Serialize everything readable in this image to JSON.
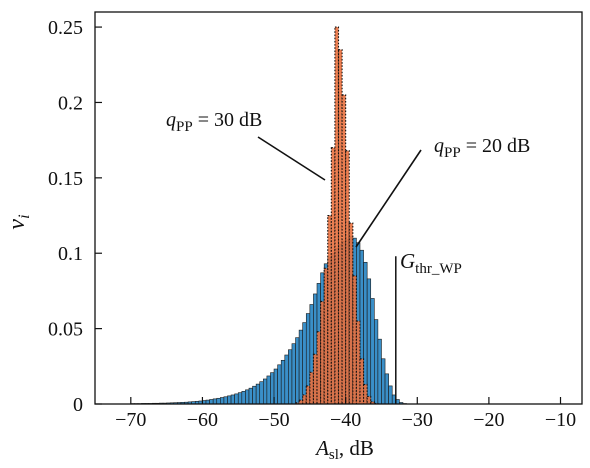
{
  "chart_data": {
    "type": "bar",
    "title": "",
    "xlabel_main": "A",
    "xlabel_sub": "sl",
    "xlabel_suffix": ", dB",
    "ylabel": "v",
    "ylabel_sub": "i",
    "xlim": [
      -75,
      -7
    ],
    "ylim": [
      0,
      0.26
    ],
    "xticks": [
      -70,
      -60,
      -50,
      -40,
      -30,
      -20,
      -10
    ],
    "xtick_labels": [
      "−70",
      "−60",
      "−50",
      "−40",
      "−30",
      "−20",
      "−10"
    ],
    "yticks": [
      0,
      0.05,
      0.1,
      0.15,
      0.2,
      0.25
    ],
    "ytick_labels": [
      "0",
      "0.05",
      "0.1",
      "0.15",
      "0.2",
      "0.25"
    ],
    "grid": false,
    "bin_width": 0.5,
    "series": [
      {
        "label_q": "q",
        "label_sub": "PP",
        "label_rest": " = 20 dB",
        "color": "#3a8fc8",
        "x": [
          -70,
          -69.5,
          -69,
          -68.5,
          -68,
          -67.5,
          -67,
          -66.5,
          -66,
          -65.5,
          -65,
          -64.5,
          -64,
          -63.5,
          -63,
          -62.5,
          -62,
          -61.5,
          -61,
          -60.5,
          -60,
          -59.5,
          -59,
          -58.5,
          -58,
          -57.5,
          -57,
          -56.5,
          -56,
          -55.5,
          -55,
          -54.5,
          -54,
          -53.5,
          -53,
          -52.5,
          -52,
          -51.5,
          -51,
          -50.5,
          -50,
          -49.5,
          -49,
          -48.5,
          -48,
          -47.5,
          -47,
          -46.5,
          -46,
          -45.5,
          -45,
          -44.5,
          -44,
          -43.5,
          -43,
          -42.5,
          -42,
          -41.5,
          -41,
          -40.5,
          -40,
          -39.5,
          -39,
          -38.5,
          -38,
          -37.5,
          -37,
          -36.5,
          -36,
          -35.5,
          -35,
          -34.5,
          -34,
          -33.5,
          -33,
          -32.5,
          -32
        ],
        "values": [
          0.0003,
          0.0003,
          0.0003,
          0.0004,
          0.0004,
          0.0004,
          0.0005,
          0.0005,
          0.0006,
          0.0006,
          0.0007,
          0.0008,
          0.0009,
          0.001,
          0.0011,
          0.0012,
          0.0014,
          0.0016,
          0.0018,
          0.002,
          0.0023,
          0.0026,
          0.003,
          0.0034,
          0.0038,
          0.0043,
          0.0048,
          0.0054,
          0.006,
          0.0067,
          0.0075,
          0.0084,
          0.0094,
          0.0105,
          0.0118,
          0.0132,
          0.0148,
          0.0166,
          0.0186,
          0.0208,
          0.0232,
          0.026,
          0.029,
          0.0325,
          0.036,
          0.04,
          0.044,
          0.049,
          0.054,
          0.06,
          0.066,
          0.073,
          0.08,
          0.087,
          0.093,
          0.097,
          0.1,
          0.103,
          0.106,
          0.108,
          0.109,
          0.111,
          0.11,
          0.107,
          0.102,
          0.094,
          0.083,
          0.07,
          0.056,
          0.043,
          0.03,
          0.02,
          0.012,
          0.006,
          0.003,
          0.001,
          0.0003
        ]
      },
      {
        "label_q": "q",
        "label_sub": "PP",
        "label_rest": " = 30 dB",
        "color": "#e8703e",
        "x": [
          -47,
          -46.5,
          -46,
          -45.5,
          -45,
          -44.5,
          -44,
          -43.5,
          -43,
          -42.5,
          -42,
          -41.5,
          -41,
          -40.5,
          -40,
          -39.5,
          -39,
          -38.5,
          -38,
          -37.5,
          -37,
          -36.5,
          -36
        ],
        "values": [
          0.0008,
          0.0025,
          0.006,
          0.012,
          0.021,
          0.033,
          0.048,
          0.068,
          0.09,
          0.125,
          0.17,
          0.25,
          0.235,
          0.205,
          0.168,
          0.12,
          0.085,
          0.055,
          0.03,
          0.013,
          0.005,
          0.0015,
          0.0004
        ]
      }
    ],
    "threshold": {
      "x": -33,
      "y": 0.098,
      "label_main": "G",
      "label_sub": "thr_WP"
    }
  }
}
